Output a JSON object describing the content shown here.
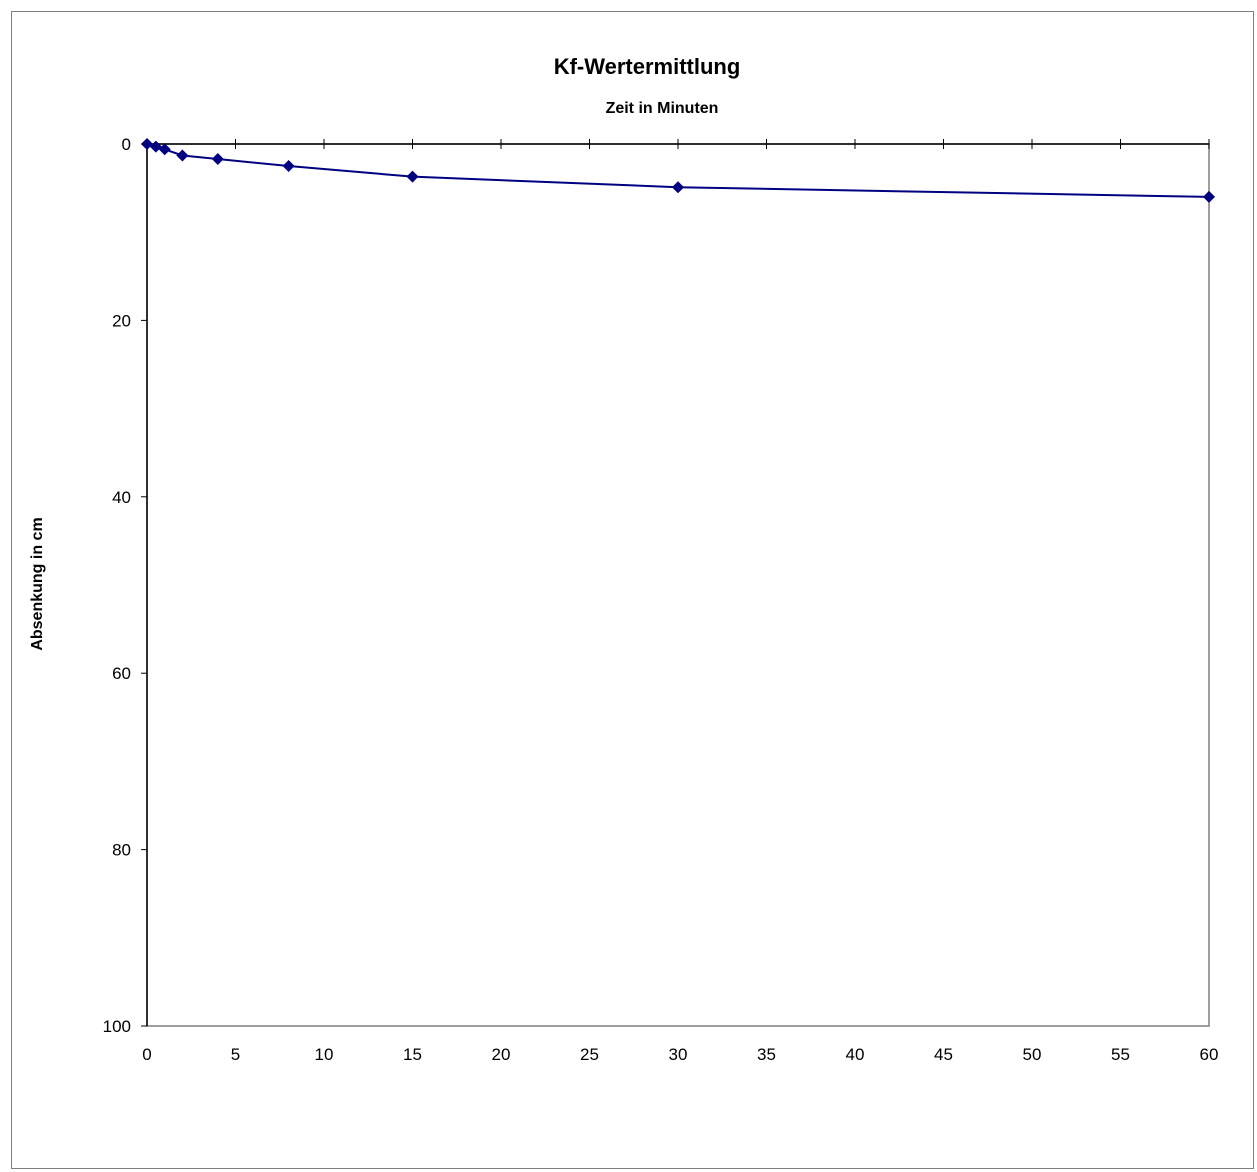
{
  "chart_data": {
    "type": "line",
    "title": "Kf-Wertermittlung",
    "xlabel": "Zeit in Minuten",
    "ylabel": "Absenkung in cm",
    "xlim": [
      0,
      60
    ],
    "ylim": [
      0,
      100
    ],
    "y_axis_reversed": true,
    "x_axis_position": "top",
    "x_tick_labels_position": "bottom",
    "grid": false,
    "legend": "none",
    "x_ticks": [
      "0",
      "5",
      "10",
      "15",
      "20",
      "25",
      "30",
      "35",
      "40",
      "45",
      "50",
      "55",
      "60"
    ],
    "y_ticks": [
      "0",
      "20",
      "40",
      "60",
      "80",
      "100"
    ],
    "series": [
      {
        "color": "#000080",
        "marker": "diamond",
        "x": [
          0,
          0.5,
          1,
          2,
          4,
          8,
          15,
          30,
          60
        ],
        "y": [
          0,
          0.3,
          0.6,
          1.3,
          1.7,
          2.5,
          3.7,
          4.9,
          6.0
        ]
      }
    ]
  }
}
